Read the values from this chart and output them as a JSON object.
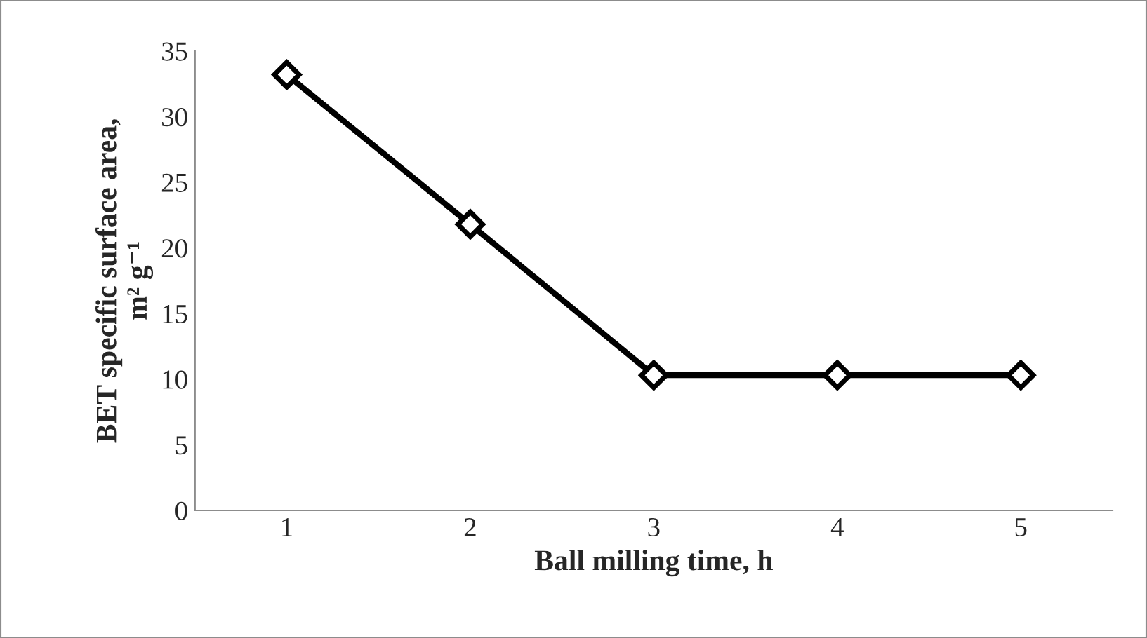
{
  "chart_data": {
    "type": "line",
    "xlabel": "Ball milling time, h",
    "ylabel": "BET specific surface area,\nm² g⁻¹",
    "categories": [
      "1",
      "2",
      "3",
      "4",
      "5"
    ],
    "series": [
      {
        "color": "#000000",
        "values": [
          33.2,
          21.8,
          10.3,
          10.3,
          10.3
        ]
      }
    ],
    "ylim": [
      0,
      35
    ],
    "yticks": [
      0,
      5,
      10,
      15,
      20,
      25,
      30,
      35
    ],
    "marker": "diamond",
    "line_style": "solid",
    "grid": false,
    "legend": false
  }
}
